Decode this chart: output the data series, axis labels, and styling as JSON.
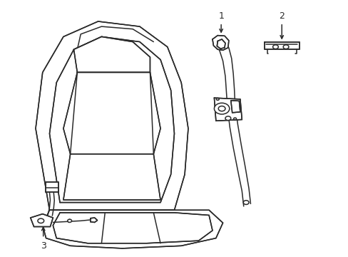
{
  "bg_color": "#ffffff",
  "line_color": "#2a2a2a",
  "lw": 1.1,
  "fig_w": 4.89,
  "fig_h": 3.6,
  "label_1": "1",
  "label_2": "2",
  "label_3": "3"
}
